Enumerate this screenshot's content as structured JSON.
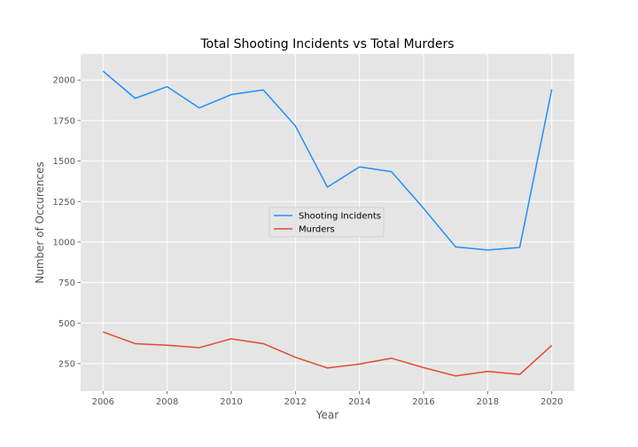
{
  "chart_data": {
    "type": "line",
    "title": "Total Shooting Incidents vs Total Murders",
    "xlabel": "Year",
    "ylabel": "Number of Occurences",
    "x": [
      2006,
      2007,
      2008,
      2009,
      2010,
      2011,
      2012,
      2013,
      2014,
      2015,
      2016,
      2017,
      2018,
      2019,
      2020
    ],
    "series": [
      {
        "name": "Shooting Incidents",
        "color": "#1e90ff",
        "values": [
          2055,
          1887,
          1959,
          1828,
          1910,
          1939,
          1717,
          1339,
          1464,
          1434,
          1208,
          970,
          951,
          967,
          1942
        ]
      },
      {
        "name": "Murders",
        "color": "#e24a33",
        "values": [
          445,
          373,
          363,
          348,
          403,
          373,
          289,
          223,
          247,
          283,
          225,
          174,
          202,
          183,
          362
        ]
      }
    ],
    "xlim": [
      2005.3,
      2020.7
    ],
    "ylim": [
      80,
      2160
    ],
    "xticks": [
      2006,
      2008,
      2010,
      2012,
      2014,
      2016,
      2018,
      2020
    ],
    "yticks": [
      250,
      500,
      750,
      1000,
      1250,
      1500,
      1750,
      2000
    ],
    "grid": true,
    "legend_position": "center",
    "background_color": "#e5e5e5",
    "grid_color": "#ffffff"
  }
}
